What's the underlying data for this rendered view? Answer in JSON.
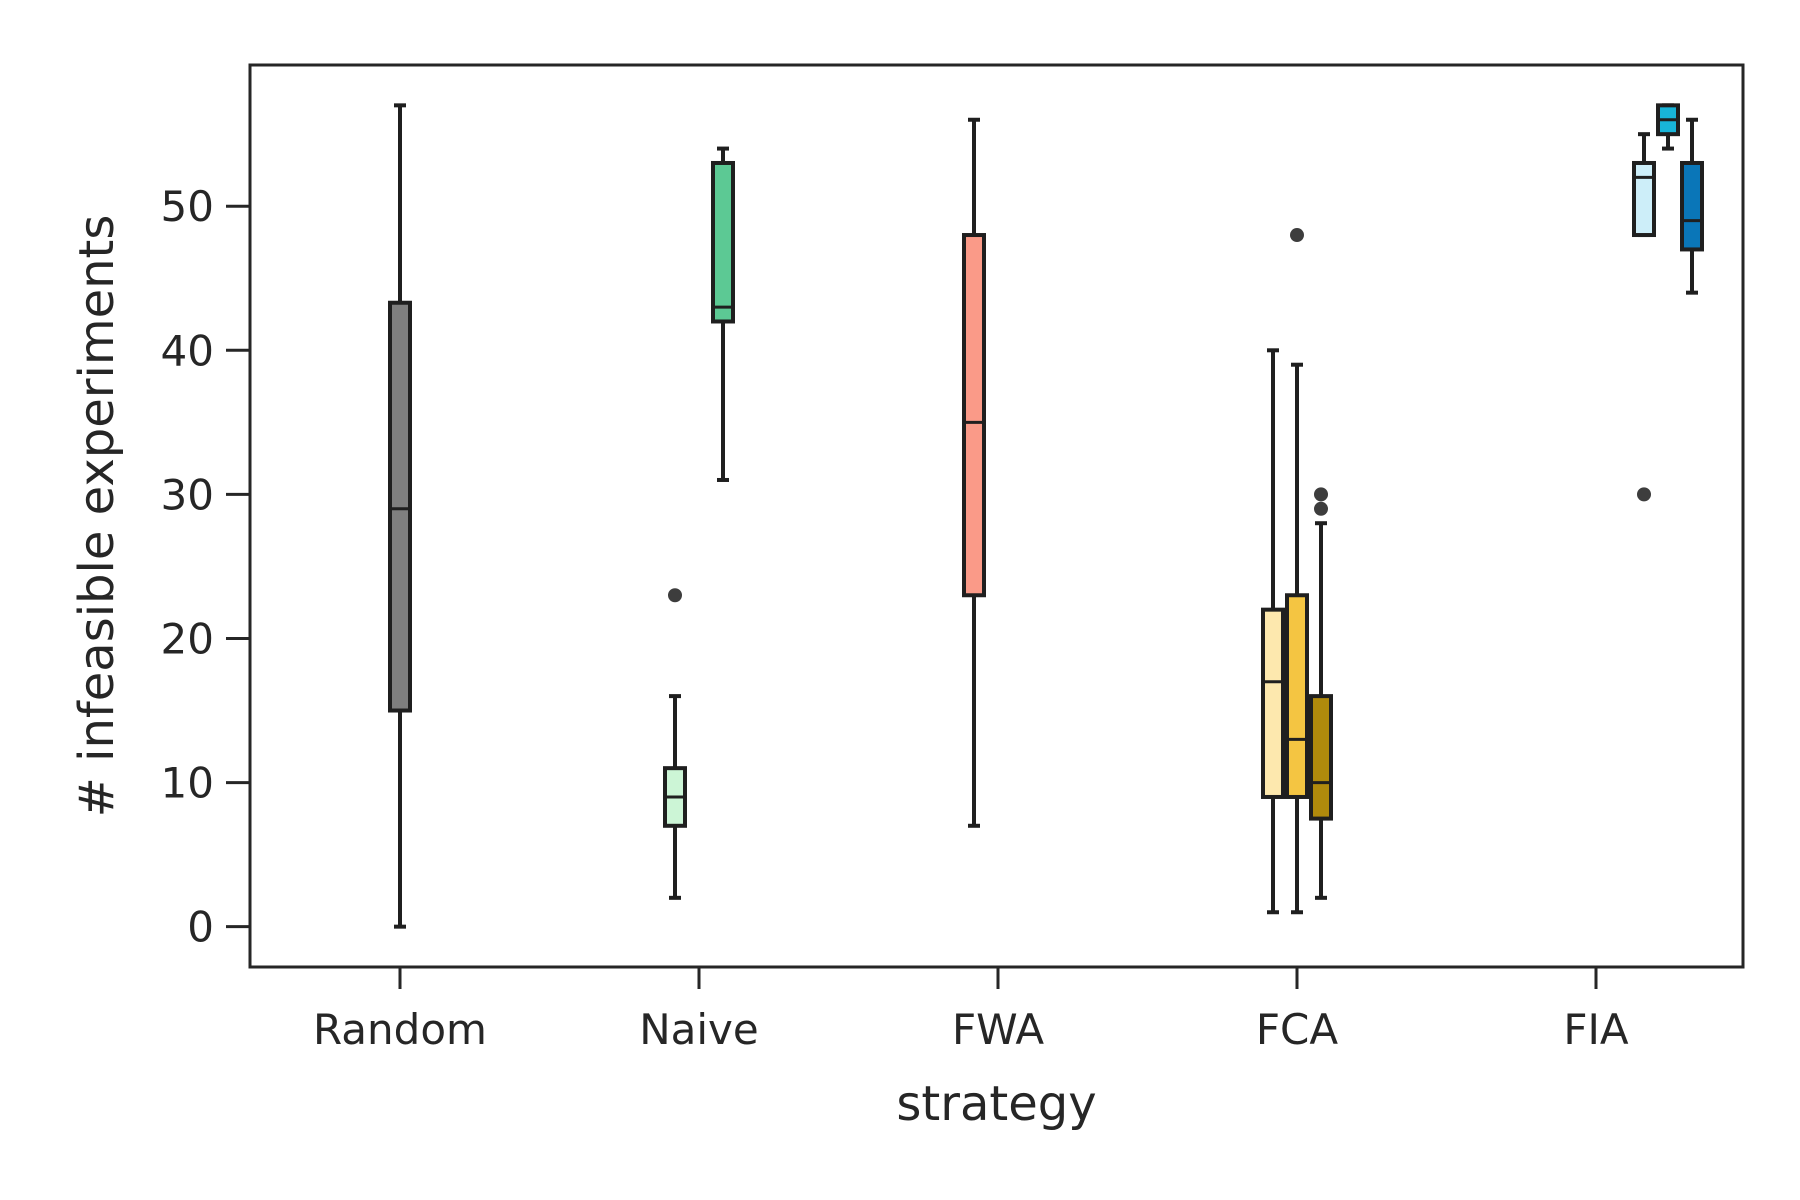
{
  "chart_data": {
    "type": "boxplot",
    "xlabel": "strategy",
    "ylabel": "# infeasible experiments",
    "categories": [
      "Random",
      "Naive",
      "FWA",
      "FCA",
      "FIA"
    ],
    "ylim": [
      -2.8,
      59.8
    ],
    "yticks": [
      0,
      10,
      20,
      30,
      40,
      50
    ],
    "grid": false,
    "legend": "none",
    "boxes": [
      {
        "category": "Random",
        "slot": 0,
        "color": "#7f7f7f",
        "whislo": 0,
        "q1": 15,
        "med": 29,
        "q3": 43.3,
        "whishi": 57,
        "fliers": []
      },
      {
        "category": "Naive",
        "slot": -1,
        "color": "#ccf5d6",
        "whislo": 2,
        "q1": 7,
        "med": 9,
        "q3": 11,
        "whishi": 16,
        "fliers": [
          23
        ]
      },
      {
        "category": "Naive",
        "slot": 1,
        "color": "#5cc994",
        "whislo": 31,
        "q1": 42,
        "med": 43,
        "q3": 53,
        "whishi": 54,
        "fliers": []
      },
      {
        "category": "FWA",
        "slot": -1,
        "color": "#fa9a88",
        "whislo": 7,
        "q1": 23,
        "med": 35,
        "q3": 48,
        "whishi": 56,
        "fliers": []
      },
      {
        "category": "FCA",
        "slot": -1,
        "color": "#fde8ae",
        "whislo": 1,
        "q1": 9,
        "med": 17,
        "q3": 22,
        "whishi": 40,
        "fliers": []
      },
      {
        "category": "FCA",
        "slot": 0,
        "color": "#f4c542",
        "whislo": 1,
        "q1": 9,
        "med": 13,
        "q3": 23,
        "whishi": 39,
        "fliers": [
          48
        ]
      },
      {
        "category": "FCA",
        "slot": 1,
        "color": "#b08a0c",
        "whislo": 2,
        "q1": 7.5,
        "med": 10,
        "q3": 16,
        "whishi": 28,
        "fliers": [
          29,
          30
        ]
      },
      {
        "category": "FIA",
        "slot": 2,
        "color": "#cdeef9",
        "whislo": 48,
        "q1": 48,
        "med": 52,
        "q3": 53,
        "whishi": 55,
        "fliers": [
          30
        ]
      },
      {
        "category": "FIA",
        "slot": 3,
        "color": "#18b4d8",
        "whislo": 54,
        "q1": 55,
        "med": 56,
        "q3": 57,
        "whishi": 57,
        "fliers": []
      },
      {
        "category": "FIA",
        "slot": 4,
        "color": "#0a76b8",
        "whislo": 44,
        "q1": 47,
        "med": 49,
        "q3": 53,
        "whishi": 56,
        "fliers": []
      }
    ]
  }
}
